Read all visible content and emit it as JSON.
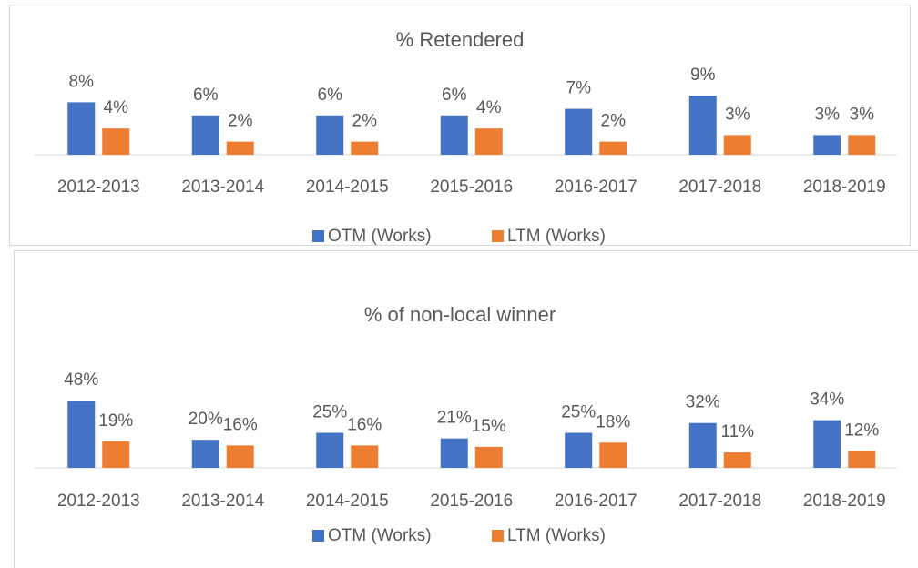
{
  "chart_data": [
    {
      "type": "bar",
      "title": "% Retendered",
      "categories": [
        "2012-2013",
        "2013-2014",
        "2014-2015",
        "2015-2016",
        "2016-2017",
        "2017-2018",
        "2018-2019"
      ],
      "series": [
        {
          "name": "OTM (Works)",
          "color": "#4472c4",
          "values": [
            8,
            6,
            6,
            6,
            7,
            9,
            3
          ],
          "value_labels": [
            "8%",
            "6%",
            "6%",
            "6%",
            "7%",
            "9%",
            "3%"
          ]
        },
        {
          "name": "LTM (Works)",
          "color": "#ed7d31",
          "values": [
            4,
            2,
            2,
            4,
            2,
            3,
            3
          ],
          "value_labels": [
            "4%",
            "2%",
            "2%",
            "4%",
            "2%",
            "3%",
            "3%"
          ]
        }
      ]
    },
    {
      "type": "bar",
      "title": "% of non-local winner",
      "categories": [
        "2012-2013",
        "2013-2014",
        "2014-2015",
        "2015-2016",
        "2016-2017",
        "2017-2018",
        "2018-2019"
      ],
      "series": [
        {
          "name": "OTM (Works)",
          "color": "#4472c4",
          "values": [
            48,
            20,
            25,
            21,
            25,
            32,
            34
          ],
          "value_labels": [
            "48%",
            "20%",
            "25%",
            "21%",
            "25%",
            "32%",
            "34%"
          ]
        },
        {
          "name": "LTM (Works)",
          "color": "#ed7d31",
          "values": [
            19,
            16,
            16,
            15,
            18,
            11,
            12
          ],
          "value_labels": [
            "19%",
            "16%",
            "16%",
            "15%",
            "18%",
            "11%",
            "12%"
          ]
        }
      ]
    }
  ]
}
